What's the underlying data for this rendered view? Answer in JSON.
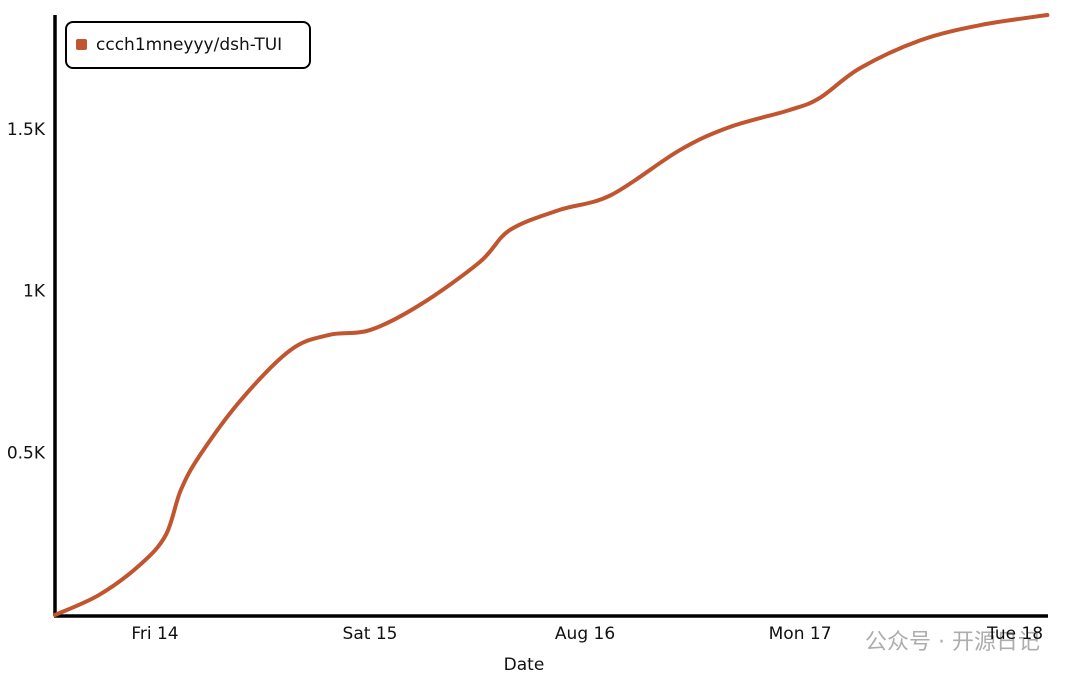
{
  "chart_data": {
    "type": "line",
    "xlabel": "Date",
    "x": [
      13.535,
      13.74,
      13.93,
      14.05,
      14.12,
      14.21,
      14.4,
      14.63,
      14.81,
      15.0,
      15.23,
      15.51,
      15.65,
      15.88,
      16.12,
      16.44,
      16.67,
      16.95,
      17.09,
      17.28,
      17.56,
      17.84,
      18.15
    ],
    "series": [
      {
        "name": "ccch1mneyyy/dsh-TUI",
        "color": "#c0552f",
        "values": [
          0,
          62,
          155,
          247,
          386,
          495,
          665,
          819,
          866,
          881,
          958,
          1091,
          1190,
          1252,
          1298,
          1437,
          1508,
          1561,
          1598,
          1691,
          1777,
          1824,
          1855
        ]
      }
    ],
    "xlim": [
      13.535,
      18.153
    ],
    "xticks": [
      {
        "value": 14,
        "label": "Fri 14"
      },
      {
        "value": 15,
        "label": "Sat 15"
      },
      {
        "value": 16,
        "label": "Aug 16"
      },
      {
        "value": 17,
        "label": "Mon 17"
      },
      {
        "value": 18,
        "label": "Tue 18"
      }
    ],
    "ylim": [
      0,
      1855
    ],
    "yticks": [
      {
        "value": 500,
        "label": "0.5K"
      },
      {
        "value": 1000,
        "label": "1K"
      },
      {
        "value": 1500,
        "label": "1.5K"
      }
    ],
    "legend": "upper left",
    "watermark": "公众号 · 开源日记"
  }
}
